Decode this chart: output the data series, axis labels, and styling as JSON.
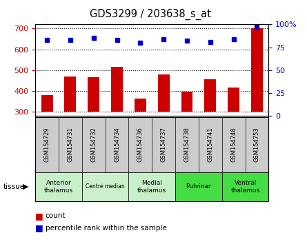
{
  "title": "GDS3299 / 203638_s_at",
  "samples": [
    "GSM154729",
    "GSM154731",
    "GSM154732",
    "GSM154734",
    "GSM154736",
    "GSM154737",
    "GSM154738",
    "GSM154741",
    "GSM154748",
    "GSM154753"
  ],
  "counts": [
    380,
    470,
    465,
    515,
    365,
    480,
    395,
    455,
    415,
    700
  ],
  "percentiles": [
    83,
    83,
    85,
    83,
    80,
    84,
    82,
    81,
    84,
    97
  ],
  "ylim_left": [
    280,
    720
  ],
  "bar_bottom": 300,
  "ylim_right": [
    0,
    100
  ],
  "yticks_left": [
    300,
    400,
    500,
    600,
    700
  ],
  "yticks_right": [
    0,
    25,
    50,
    75,
    100
  ],
  "right_tick_labels": [
    "0",
    "25",
    "50",
    "75",
    "100%"
  ],
  "bar_color": "#cc0000",
  "dot_color": "#0000cc",
  "tissue_groups": [
    {
      "label": "Anterior\nthalamus",
      "start": 0,
      "end": 1,
      "color": "#c8f0c8"
    },
    {
      "label": "Centre median",
      "start": 2,
      "end": 3,
      "color": "#ccf0cc"
    },
    {
      "label": "Medial\nthalamus",
      "start": 4,
      "end": 5,
      "color": "#c8f0c8"
    },
    {
      "label": "Pulvinar",
      "start": 6,
      "end": 7,
      "color": "#44dd44"
    },
    {
      "label": "Ventral\nthalamus",
      "start": 8,
      "end": 9,
      "color": "#44dd44"
    }
  ],
  "legend_count_label": "count",
  "legend_pct_label": "percentile rank within the sample",
  "bar_color_legend": "#cc0000",
  "dot_color_legend": "#0000cc",
  "sample_box_color": "#cccccc",
  "bar_width": 0.5
}
